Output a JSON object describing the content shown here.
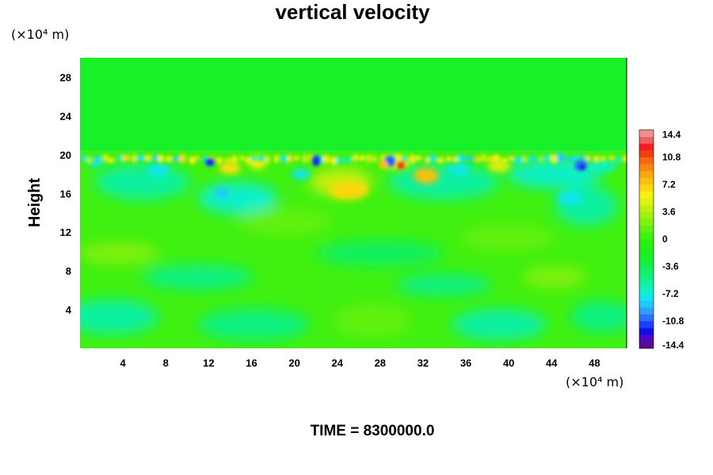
{
  "chart_data": {
    "type": "heatmap",
    "title": "vertical velocity",
    "ylabel": "Height",
    "x_unit_label": "(×10⁴ m)",
    "y_unit_label": "(×10⁴ m)",
    "xlim": [
      0,
      51
    ],
    "ylim": [
      0,
      30
    ],
    "x_ticks": [
      4,
      8,
      12,
      16,
      20,
      24,
      28,
      32,
      36,
      40,
      44,
      48
    ],
    "y_ticks": [
      4,
      8,
      12,
      16,
      20,
      24,
      28
    ],
    "x_tick_labels": [
      "4",
      "8",
      "12",
      "16",
      "20",
      "24",
      "28",
      "32",
      "36",
      "40",
      "44",
      "48"
    ],
    "y_tick_labels": [
      "4",
      "8",
      "12",
      "16",
      "20",
      "24",
      "28"
    ],
    "colorbar": {
      "min": -14.4,
      "max": 14.4,
      "levels": 32,
      "tick_values": [
        14.4,
        10.8,
        7.2,
        3.6,
        0,
        -3.6,
        -7.2,
        -10.8,
        -14.4
      ],
      "tick_labels": [
        "14.4",
        "10.8",
        "7.2",
        "3.6",
        "0",
        "-3.6",
        "-7.2",
        "-10.8",
        "-14.4"
      ],
      "colors": [
        "#5a0a8c",
        "#4a0ac0",
        "#1010e6",
        "#1a40ff",
        "#2a70ff",
        "#30a0ff",
        "#22c8ff",
        "#10e6f0",
        "#10f0c8",
        "#10f0a0",
        "#10f080",
        "#10f060",
        "#14f040",
        "#18f028",
        "#20f018",
        "#28f010",
        "#40f010",
        "#60f010",
        "#80f010",
        "#a0f010",
        "#c0f010",
        "#e0f010",
        "#f8f010",
        "#f8d810",
        "#f8c010",
        "#f8a810",
        "#f88810",
        "#f86810",
        "#f04010",
        "#f02020",
        "#f06060",
        "#f09090"
      ]
    },
    "field_description_features": [
      {
        "x": 12,
        "y": 19,
        "value": -12
      },
      {
        "x": 22,
        "y": 19,
        "value": -12
      },
      {
        "x": 29,
        "y": 19.5,
        "value": -10
      },
      {
        "x": 30,
        "y": 19,
        "value": 11
      },
      {
        "x": 46.5,
        "y": 19,
        "value": -12
      },
      {
        "x": 24.5,
        "y": 16,
        "value": 7
      },
      {
        "x": 32,
        "y": 17,
        "value": 8
      },
      {
        "x": 14,
        "y": 16,
        "value": -6
      }
    ]
  },
  "footer": {
    "time_label": "TIME = 8300000.0"
  }
}
